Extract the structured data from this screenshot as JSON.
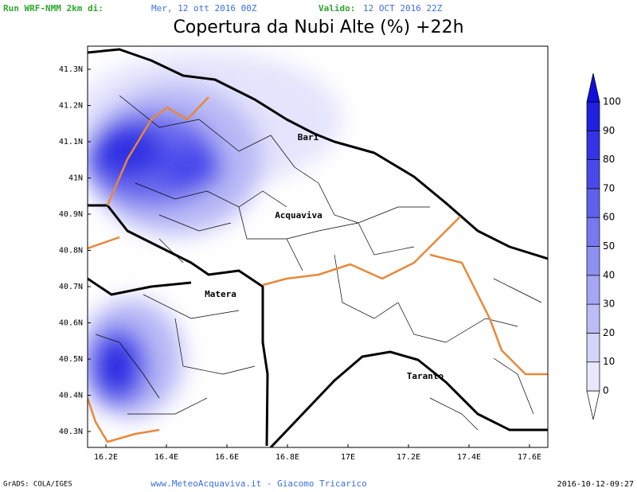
{
  "header": {
    "run_label": "Run WRF-NMM 2km di:",
    "run_date": "Mer, 12 ott 2016 00Z",
    "valid_label": "Valido:",
    "valid_date": "12 OCT 2016 22Z",
    "title": "Copertura da Nubi Alte (%) +22h"
  },
  "map": {
    "lat_labels": [
      "41.3N",
      "41.2N",
      "41.1N",
      "41N",
      "40.9N",
      "40.8N",
      "40.7N",
      "40.6N",
      "40.5N",
      "40.4N",
      "40.3N"
    ],
    "lon_labels": [
      "16.2E",
      "16.4E",
      "16.6E",
      "16.8E",
      "17E",
      "17.2E",
      "17.4E",
      "17.6E"
    ],
    "cities": [
      "Bari",
      "Acquaviva",
      "Matera",
      "Taranto"
    ]
  },
  "colorbar": {
    "levels": [
      0,
      10,
      20,
      30,
      40,
      50,
      60,
      70,
      80,
      90,
      100
    ],
    "colors": [
      "#ffffff",
      "#e8e8fc",
      "#d4d4fa",
      "#bcbcf6",
      "#a6a6f4",
      "#9090f2",
      "#7878f0",
      "#6060ee",
      "#4a4aec",
      "#3434e6",
      "#2020e0",
      "#1010d8"
    ]
  },
  "footer": {
    "left": "GrADS: COLA/IGES",
    "center": "www.MeteoAcquaviva.it  -  Giacomo Tricarico",
    "right": "2016-10-12-09:27"
  }
}
